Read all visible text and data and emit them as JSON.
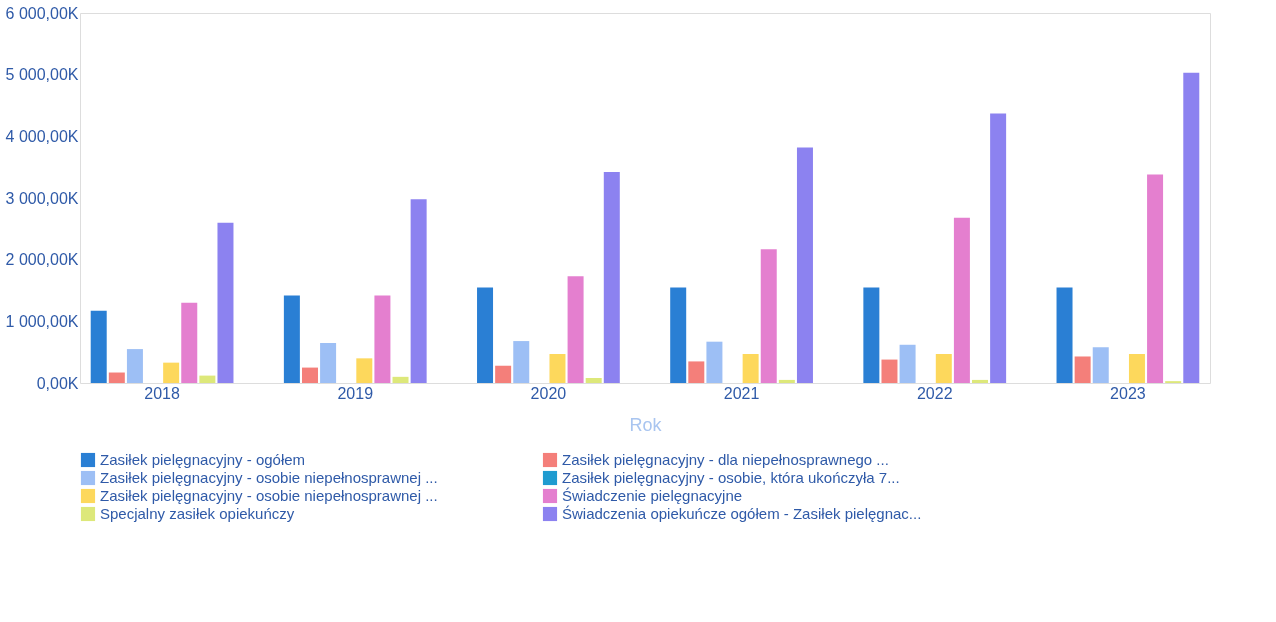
{
  "chart_data": {
    "type": "bar",
    "xlabel": "Rok",
    "categories": [
      "2018",
      "2019",
      "2020",
      "2021",
      "2022",
      "2023"
    ],
    "series": [
      {
        "name": "Zasiłek pielęgnacyjny - ogółem",
        "color": "#2a7fd4",
        "values": [
          1170,
          1420,
          1550,
          1550,
          1550,
          1550
        ]
      },
      {
        "name": "Zasiłek pielęgnacyjny - dla niepełnosprawnego ...",
        "color": "#f47f7a",
        "values": [
          170,
          250,
          280,
          350,
          380,
          430
        ]
      },
      {
        "name": "Zasiłek pielęgnacyjny - osobie niepełnosprawnej ...",
        "color": "#9dbff5",
        "values": [
          550,
          650,
          680,
          670,
          620,
          580
        ]
      },
      {
        "name": "Zasiłek pielęgnacyjny - osobie, która ukończyła 7...",
        "color": "#1f9bd0",
        "values": [
          null,
          null,
          null,
          null,
          null,
          null
        ]
      },
      {
        "name": "Zasiłek pielęgnacyjny -  osobie niepełnosprawnej ...",
        "color": "#fdd85c",
        "values": [
          330,
          400,
          470,
          470,
          470,
          470
        ]
      },
      {
        "name": "Świadczenie pielęgnacyjne",
        "color": "#e47fcf",
        "values": [
          1300,
          1420,
          1730,
          2170,
          2680,
          3380
        ]
      },
      {
        "name": "Specjalny zasiłek opiekuńczy",
        "color": "#dde87a",
        "values": [
          120,
          100,
          80,
          50,
          50,
          30
        ]
      },
      {
        "name": "Świadczenia opiekuńcze ogółem - Zasiłek pielęgnac...",
        "color": "#8c82f0",
        "values": [
          2600,
          2980,
          3420,
          3820,
          4370,
          5030
        ]
      }
    ],
    "ylim": [
      0,
      6000
    ],
    "yticks": [
      {
        "value": 0,
        "label": "0,00K"
      },
      {
        "value": 1000,
        "label": "1 000,00K"
      },
      {
        "value": 2000,
        "label": "2 000,00K"
      },
      {
        "value": 3000,
        "label": "3 000,00K"
      },
      {
        "value": 4000,
        "label": "4 000,00K"
      },
      {
        "value": 5000,
        "label": "5 000,00K"
      },
      {
        "value": 6000,
        "label": "6 000,00K"
      }
    ],
    "grid": false,
    "legend": "bottom"
  }
}
